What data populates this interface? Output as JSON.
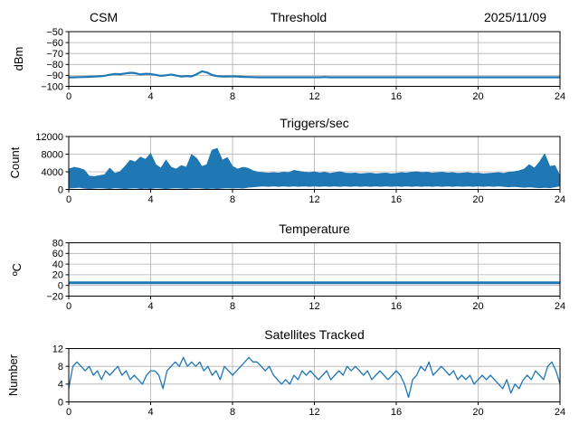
{
  "figure": {
    "station": "CSM",
    "date": "2025/11/09"
  },
  "colors": {
    "line": "#1f77b4",
    "grid": "#b0b0b0",
    "spine": "#000000",
    "background": "#ffffff"
  },
  "chart_data": [
    {
      "id": "threshold",
      "type": "line",
      "title": "Threshold",
      "title_left": "CSM",
      "title_right": "2025/11/09",
      "ylabel": "dBm",
      "xlabel": "",
      "xlim": [
        0,
        24
      ],
      "ylim": [
        -100,
        -50
      ],
      "grid": true,
      "legend": "none",
      "color": "#1f77b4",
      "linewidth": 2.2,
      "xticks": {
        "values": [
          0,
          4,
          8,
          12,
          16,
          20,
          24
        ],
        "labels": [
          "0",
          "4",
          "8",
          "12",
          "16",
          "20",
          "24"
        ]
      },
      "yticks": {
        "values": [
          -100,
          -90,
          -80,
          -70,
          -60,
          -50
        ],
        "labels": [
          "−100",
          "−90",
          "−80",
          "−70",
          "−60",
          "−50"
        ]
      },
      "x_start": 0,
      "x_step": 0.25,
      "y": [
        -91.8,
        -91.7,
        -91.6,
        -91.5,
        -91.3,
        -91.1,
        -90.8,
        -90.3,
        -89.4,
        -88.7,
        -88.9,
        -88.3,
        -87.6,
        -87.9,
        -89.2,
        -88.5,
        -88.8,
        -89.5,
        -90.4,
        -89.9,
        -89.2,
        -90.2,
        -91.1,
        -90.6,
        -90.9,
        -88.9,
        -86.3,
        -87.3,
        -89.7,
        -90.7,
        -91.1,
        -91.0,
        -90.9,
        -91.0,
        -91.3,
        -91.5,
        -91.6,
        -91.7,
        -91.7,
        -91.7,
        -91.7,
        -91.7,
        -91.7,
        -91.7,
        -91.7,
        -91.7,
        -91.7,
        -91.7,
        -91.7,
        -91.7,
        -91.5,
        -91.7,
        -91.7,
        -91.7,
        -91.7,
        -91.7,
        -91.7,
        -91.7,
        -91.7,
        -91.7,
        -91.7,
        -91.7,
        -91.7,
        -91.7,
        -91.7,
        -91.7,
        -91.7,
        -91.7,
        -91.7,
        -91.7,
        -91.7,
        -91.7,
        -91.7,
        -91.7,
        -91.7,
        -91.7,
        -91.7,
        -91.7,
        -91.7,
        -91.7,
        -91.7,
        -91.7,
        -91.7,
        -91.7,
        -91.7,
        -91.7,
        -91.7,
        -91.7,
        -91.7,
        -91.7,
        -91.7,
        -91.7,
        -91.7,
        -91.7,
        -91.7,
        -91.7,
        -91.7
      ]
    },
    {
      "id": "triggers",
      "type": "band",
      "title": "Triggers/sec",
      "ylabel": "Count",
      "xlabel": "",
      "xlim": [
        0,
        24
      ],
      "ylim": [
        0,
        12000
      ],
      "grid": true,
      "legend": "none",
      "color": "#1f77b4",
      "linewidth": 1,
      "xticks": {
        "values": [
          0,
          4,
          8,
          12,
          16,
          20,
          24
        ],
        "labels": [
          "0",
          "4",
          "8",
          "12",
          "16",
          "20",
          "24"
        ]
      },
      "yticks": {
        "values": [
          0,
          4000,
          8000,
          12000
        ],
        "labels": [
          "0",
          "4000",
          "8000",
          "12000"
        ]
      },
      "x_start": 0,
      "x_step": 0.25,
      "ymin": [
        300,
        400,
        500,
        300,
        200,
        300,
        400,
        300,
        200,
        400,
        300,
        200,
        300,
        400,
        200,
        300,
        200,
        400,
        300,
        200,
        300,
        400,
        300,
        200,
        300,
        400,
        300,
        200,
        300,
        200,
        300,
        400,
        300,
        400,
        300,
        500,
        600,
        700,
        800,
        700,
        800,
        700,
        800,
        700,
        800,
        700,
        800,
        700,
        800,
        700,
        800,
        700,
        800,
        700,
        800,
        700,
        800,
        700,
        800,
        700,
        800,
        700,
        800,
        700,
        800,
        700,
        800,
        700,
        800,
        700,
        800,
        700,
        800,
        700,
        800,
        700,
        800,
        700,
        800,
        700,
        800,
        700,
        800,
        700,
        800,
        700,
        600,
        700,
        600,
        500,
        600,
        500,
        400,
        500,
        400,
        600,
        800
      ],
      "ymax": [
        4600,
        5000,
        4800,
        4400,
        3000,
        2900,
        3100,
        3300,
        4800,
        3600,
        4000,
        5200,
        6600,
        6200,
        7300,
        6800,
        8100,
        5600,
        4800,
        6600,
        5000,
        4600,
        5400,
        5000,
        7900,
        7000,
        5200,
        5600,
        8900,
        9300,
        6600,
        7200,
        5200,
        4600,
        5000,
        4800,
        4200,
        3900,
        3800,
        3700,
        3800,
        3700,
        3900,
        3800,
        4300,
        4100,
        3900,
        3800,
        4000,
        3700,
        3900,
        3600,
        3800,
        4000,
        3700,
        3600,
        3700,
        3500,
        3600,
        3700,
        3500,
        3600,
        3700,
        3500,
        3600,
        3800,
        3700,
        3900,
        4000,
        3800,
        3900,
        3700,
        3800,
        3900,
        3700,
        3800,
        3600,
        3700,
        3800,
        3600,
        3700,
        3500,
        3600,
        3700,
        3800,
        3600,
        3900,
        4000,
        4200,
        4600,
        5600,
        4800,
        6200,
        8000,
        5200,
        5400,
        3000
      ]
    },
    {
      "id": "temperature",
      "type": "line",
      "title": "Temperature",
      "ylabel": "ºC",
      "xlabel": "",
      "xlim": [
        0,
        24
      ],
      "ylim": [
        -20,
        80
      ],
      "grid": true,
      "legend": "none",
      "color": "#1f77b4",
      "linewidth": 3,
      "xticks": {
        "values": [
          0,
          4,
          8,
          12,
          16,
          20,
          24
        ],
        "labels": [
          "0",
          "4",
          "8",
          "12",
          "16",
          "20",
          "24"
        ]
      },
      "yticks": {
        "values": [
          -20,
          0,
          20,
          40,
          60,
          80
        ],
        "labels": [
          "−20",
          "0",
          "20",
          "40",
          "60",
          "80"
        ]
      },
      "x_start": 0,
      "x_step": 24,
      "y": [
        5,
        5
      ]
    },
    {
      "id": "satellites",
      "type": "line",
      "title": "Satellites Tracked",
      "ylabel": "Number",
      "xlabel": "",
      "xlim": [
        0,
        24
      ],
      "ylim": [
        0,
        12
      ],
      "grid": true,
      "legend": "none",
      "color": "#1f77b4",
      "linewidth": 1.3,
      "xticks": {
        "values": [
          0,
          4,
          8,
          12,
          16,
          20,
          24
        ],
        "labels": [
          "0",
          "4",
          "8",
          "12",
          "16",
          "20",
          "24"
        ]
      },
      "yticks": {
        "values": [
          0,
          4,
          8,
          12
        ],
        "labels": [
          "0",
          "4",
          "8",
          "12"
        ]
      },
      "x_start": 0,
      "x_step": 0.2,
      "y": [
        3,
        8,
        9,
        8,
        7,
        8,
        6,
        7,
        5,
        7,
        6,
        7,
        8,
        6,
        7,
        5,
        6,
        5,
        4,
        6,
        7,
        7,
        6,
        3,
        7,
        8,
        9,
        8,
        10,
        8,
        9,
        8,
        9,
        7,
        8,
        6,
        7,
        5,
        8,
        7,
        6,
        7,
        8,
        9,
        10,
        9,
        9,
        8,
        7,
        8,
        6,
        5,
        4,
        5,
        4,
        6,
        5,
        7,
        6,
        7,
        6,
        5,
        6,
        7,
        5,
        6,
        7,
        6,
        8,
        7,
        8,
        7,
        6,
        7,
        5,
        6,
        7,
        6,
        5,
        6,
        7,
        6,
        4,
        1,
        5,
        6,
        8,
        7,
        9,
        6,
        7,
        8,
        7,
        6,
        7,
        5,
        6,
        5,
        6,
        4,
        5,
        6,
        5,
        6,
        5,
        4,
        3,
        5,
        2,
        4,
        3,
        5,
        6,
        5,
        7,
        6,
        5,
        8,
        9,
        7,
        4
      ]
    }
  ]
}
